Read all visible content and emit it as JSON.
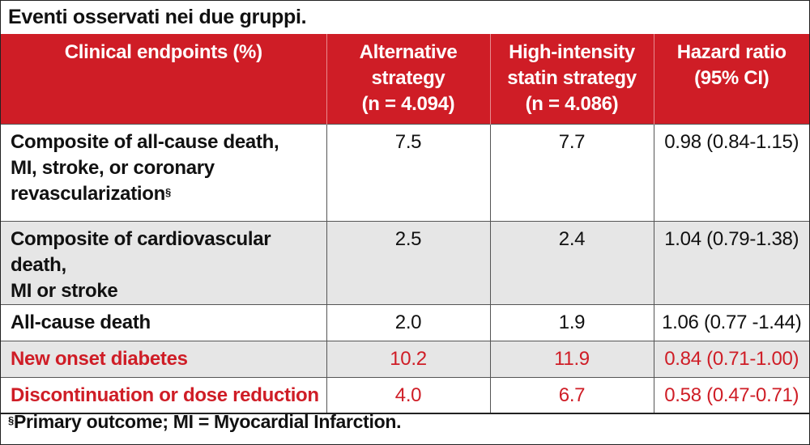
{
  "caption": "Eventi osservati nei due gruppi.",
  "colors": {
    "header_bg": "#cf1d26",
    "highlight_text": "#cf1d26",
    "shaded_row": "#e6e6e6"
  },
  "table": {
    "headers": [
      [
        "Clinical endpoints (%)"
      ],
      [
        "Alternative",
        "strategy",
        "(n = 4.094)"
      ],
      [
        "High-intensity",
        "statin strategy",
        "(n = 4.086)"
      ],
      [
        "Hazard ratio",
        "(95% CI)"
      ]
    ],
    "rows": [
      {
        "endpoint_lines": [
          "Composite of all-cause death,",
          "MI, stroke, or coronary"
        ],
        "endpoint_last": "revascularization",
        "endpoint_mark": "§",
        "alternative": "7.5",
        "high_intensity": "7.7",
        "hazard_ratio": "0.98 (0.84-1.15)"
      },
      {
        "endpoint_lines": [
          "Composite of cardiovascular death,"
        ],
        "endpoint_last": "MI or stroke",
        "alternative": "2.5",
        "high_intensity": "2.4",
        "hazard_ratio": "1.04 (0.79-1.38)"
      },
      {
        "endpoint_last": "All-cause death",
        "alternative": "2.0",
        "high_intensity": "1.9",
        "hazard_ratio": "1.06 (0.77 -1.44)"
      },
      {
        "endpoint_last": "New onset diabetes",
        "alternative": "10.2",
        "high_intensity": "11.9",
        "hazard_ratio": "0.84 (0.71-1.00)"
      },
      {
        "endpoint_last": "Discontinuation or dose reduction",
        "alternative": "4.0",
        "high_intensity": "6.7",
        "hazard_ratio": "0.58 (0.47-0.71)"
      }
    ]
  },
  "footnote": {
    "mark": "§",
    "text": "Primary outcome; MI = Myocardial Infarction."
  }
}
